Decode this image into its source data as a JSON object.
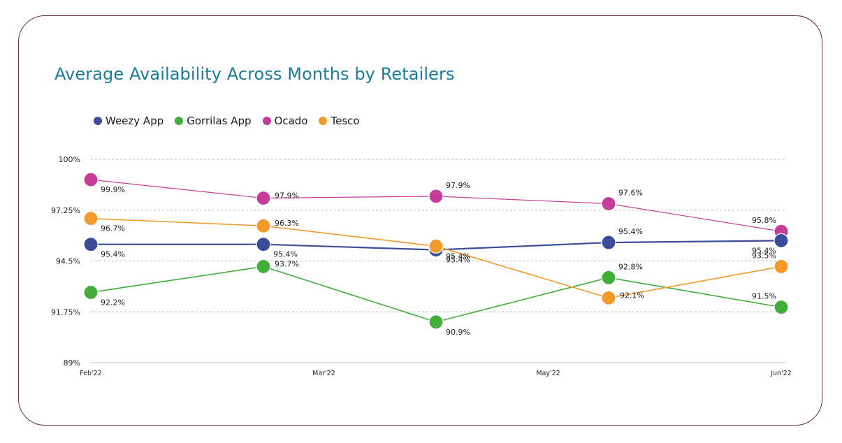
{
  "chart_data": {
    "type": "line",
    "title": "Average Availability Across Months by Retailers",
    "xlabel": "",
    "ylabel": "",
    "ylim": [
      89,
      100
    ],
    "y_ticks": [
      89,
      91.75,
      94.5,
      97.25,
      100
    ],
    "y_tick_labels": [
      "89%",
      "91.75%",
      "94.5%",
      "97.25%",
      "100%"
    ],
    "x_tick_labels": [
      "Feb'22",
      "Mar'22",
      "May'22",
      "Jun'22"
    ],
    "x_tick_positions": [
      0,
      1.35,
      2.65,
      4
    ],
    "grid": true,
    "legend_position": "top-left",
    "series": [
      {
        "name": "Weezy App",
        "color": "#3b4c9b",
        "values": [
          95.4,
          95.4,
          95.4,
          95.4,
          95.4
        ],
        "plot_values": [
          95.4,
          95.4,
          95.1,
          95.5,
          95.6
        ],
        "labels": [
          "95.4%",
          "95.4%",
          "95.4%",
          "95.4%",
          "95.4%"
        ],
        "label_pos": [
          "below",
          "below",
          "below",
          "above",
          "below"
        ]
      },
      {
        "name": "Gorrilas App",
        "color": "#41ae3a",
        "values": [
          92.2,
          93.7,
          90.9,
          92.8,
          91.5
        ],
        "plot_values": [
          92.8,
          94.2,
          91.2,
          93.6,
          92.0
        ],
        "labels": [
          "92.2%",
          "93.7%",
          "90.9%",
          "92.8%",
          "91.5%"
        ],
        "label_pos": [
          "below",
          "right",
          "below",
          "above",
          "above"
        ]
      },
      {
        "name": "Ocado",
        "color": "#c43d99",
        "values": [
          99.9,
          97.9,
          97.9,
          97.6,
          95.8
        ],
        "plot_values": [
          98.9,
          97.9,
          98.0,
          97.6,
          96.1
        ],
        "labels": [
          "99.9%",
          "97.9%",
          "97.9%",
          "97.6%",
          "95.8%"
        ],
        "label_pos": [
          "below",
          "right",
          "above",
          "above",
          "above"
        ]
      },
      {
        "name": "Tesco",
        "color": "#f39a2a",
        "values": [
          96.7,
          96.3,
          95.4,
          92.1,
          93.5
        ],
        "plot_values": [
          96.8,
          96.4,
          95.3,
          92.5,
          94.2
        ],
        "labels": [
          "96.7%",
          "96.3%",
          "95.4%",
          "92.1%",
          "93.5%"
        ],
        "label_pos": [
          "below",
          "right",
          "below",
          "right",
          "above"
        ]
      }
    ]
  }
}
